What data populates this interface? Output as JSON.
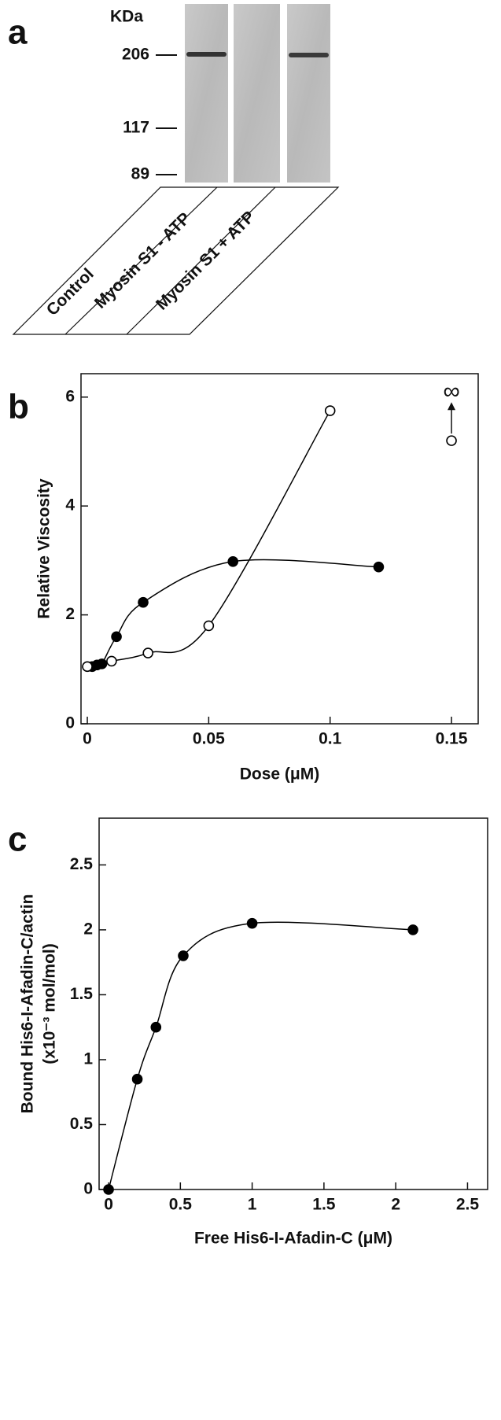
{
  "panel_labels": [
    "a",
    "b",
    "c"
  ],
  "blot": {
    "unit": "KDa",
    "markers": [
      "206",
      "117",
      "89"
    ],
    "lanes": [
      "Control",
      "Myosin S1 - ATP",
      "Myosin S1 + ATP"
    ]
  },
  "chart_data": [
    {
      "type": "scatter",
      "x_label": "Dose (μM)",
      "y_label": "Relative  Viscosity",
      "xlim": [
        -0.0026,
        0.161
      ],
      "ylim": [
        0,
        6.43
      ],
      "xticks": [
        0,
        0.05,
        0.1,
        0.15
      ],
      "yticks": [
        0,
        2,
        4,
        6
      ],
      "series": [
        {
          "color": "#000000",
          "marker": "filled",
          "line": true,
          "x": [
            0.002,
            0.004,
            0.006,
            0.012,
            0.023,
            0.06,
            0.12
          ],
          "y": [
            1.05,
            1.08,
            1.1,
            1.6,
            2.23,
            2.98,
            2.88
          ]
        },
        {
          "color": "#000000",
          "marker": "open",
          "line": true,
          "x": [
            0,
            0.01,
            0.025,
            0.05,
            0.1
          ],
          "y": [
            1.05,
            1.15,
            1.3,
            1.8,
            5.75
          ]
        },
        {
          "color": "#000000",
          "marker": "open",
          "line": false,
          "x": [
            0.15
          ],
          "y": [
            5.2
          ]
        }
      ],
      "annotations": [
        {
          "text": "∞",
          "x": 0.15,
          "y": 6.05
        }
      ]
    },
    {
      "type": "scatter",
      "x_label": "Free His6-I-Afadin-C (μM)",
      "y_label": [
        "Bound His6-I-Afadin-C/actin",
        "(x10⁻³ mol/mol)"
      ],
      "xlim": [
        -0.066,
        2.64
      ],
      "ylim": [
        0,
        2.86
      ],
      "xticks": [
        0,
        0.5,
        1,
        1.5,
        2,
        2.5
      ],
      "yticks": [
        0,
        0.5,
        1,
        1.5,
        2,
        2.5
      ],
      "series": [
        {
          "color": "#000000",
          "marker": "filled",
          "line": true,
          "x": [
            0,
            0.2,
            0.33,
            0.52,
            1.0,
            2.12
          ],
          "y": [
            0,
            0.85,
            1.25,
            1.8,
            2.05,
            2.0
          ]
        }
      ]
    }
  ]
}
